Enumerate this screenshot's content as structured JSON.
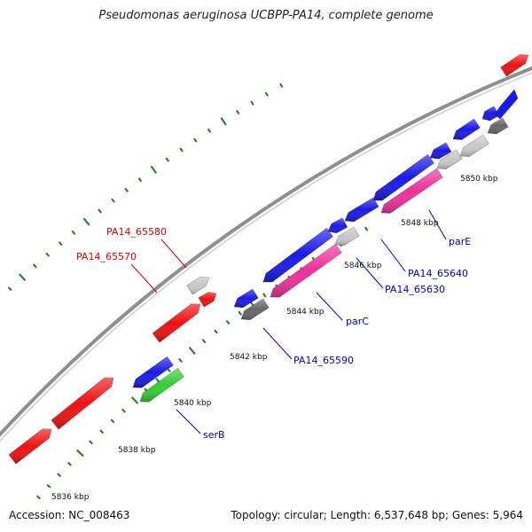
{
  "header": {
    "title": "Pseudomonas aeruginosa UCBPP-PA14, complete genome"
  },
  "footer": {
    "accession": "Accession: NC_008463",
    "topology": "Topology: circular; Length: 6,537,648 bp; Genes: 5,964"
  },
  "colors": {
    "backbone": "#8f8f8f",
    "tick": "#1f7a1f",
    "red": "#ee1111",
    "blue": "#1a1ae6",
    "green": "#35cc35",
    "magenta": "#ee2f9c",
    "light_gray": "#c8c8c8",
    "dark_gray": "#666666",
    "label_red": "#dd0000",
    "label_blue": "#0000cc"
  },
  "scale_labels": [
    "5836 kbp",
    "5838 kbp",
    "5840 kbp",
    "5842 kbp",
    "5844 kbp",
    "5846 kbp",
    "5848 kbp",
    "5850 kbp"
  ],
  "genes": [
    {
      "id": "g1",
      "color": "red",
      "strand": "+"
    },
    {
      "id": "g2",
      "color": "red",
      "strand": "+"
    },
    {
      "id": "PA14_65570",
      "color": "red",
      "strand": "+"
    },
    {
      "id": "PA14_65580",
      "color": "light_gray",
      "strand": "+"
    },
    {
      "id": "g5",
      "color": "red",
      "strand": "+"
    },
    {
      "id": "g6",
      "color": "blue",
      "strand": "-"
    },
    {
      "id": "serB",
      "color": "green",
      "strand": "-"
    },
    {
      "id": "g8",
      "color": "blue",
      "strand": "-"
    },
    {
      "id": "PA14_65590",
      "color": "dark_gray",
      "strand": "-"
    },
    {
      "id": "g10",
      "color": "blue",
      "strand": "-"
    },
    {
      "id": "parC",
      "color": "magenta",
      "strand": "-"
    },
    {
      "id": "PA14_65630",
      "color": "light_gray",
      "strand": "-"
    },
    {
      "id": "PA14_65640",
      "color": "blue",
      "strand": "-"
    },
    {
      "id": "g14",
      "color": "blue",
      "strand": "-"
    },
    {
      "id": "g15",
      "color": "blue",
      "strand": "-"
    },
    {
      "id": "parE",
      "color": "magenta",
      "strand": "-"
    },
    {
      "id": "g17",
      "color": "light_gray",
      "strand": "-"
    },
    {
      "id": "g18",
      "color": "blue",
      "strand": "-"
    },
    {
      "id": "g19",
      "color": "light_gray",
      "strand": "-"
    },
    {
      "id": "g20",
      "color": "dark_gray",
      "strand": "-"
    },
    {
      "id": "g21",
      "color": "blue",
      "strand": "-"
    },
    {
      "id": "g22",
      "color": "blue",
      "strand": "-"
    },
    {
      "id": "g23",
      "color": "red",
      "strand": "+"
    }
  ],
  "gene_labels": [
    {
      "text": "PA14_65580",
      "color": "label_red"
    },
    {
      "text": "PA14_65570",
      "color": "label_red"
    },
    {
      "text": "serB",
      "color": "label_blue"
    },
    {
      "text": "PA14_65590",
      "color": "label_blue"
    },
    {
      "text": "parC",
      "color": "label_blue"
    },
    {
      "text": "PA14_65630",
      "color": "label_blue"
    },
    {
      "text": "PA14_65640",
      "color": "label_blue"
    },
    {
      "text": "parE",
      "color": "label_blue"
    }
  ]
}
